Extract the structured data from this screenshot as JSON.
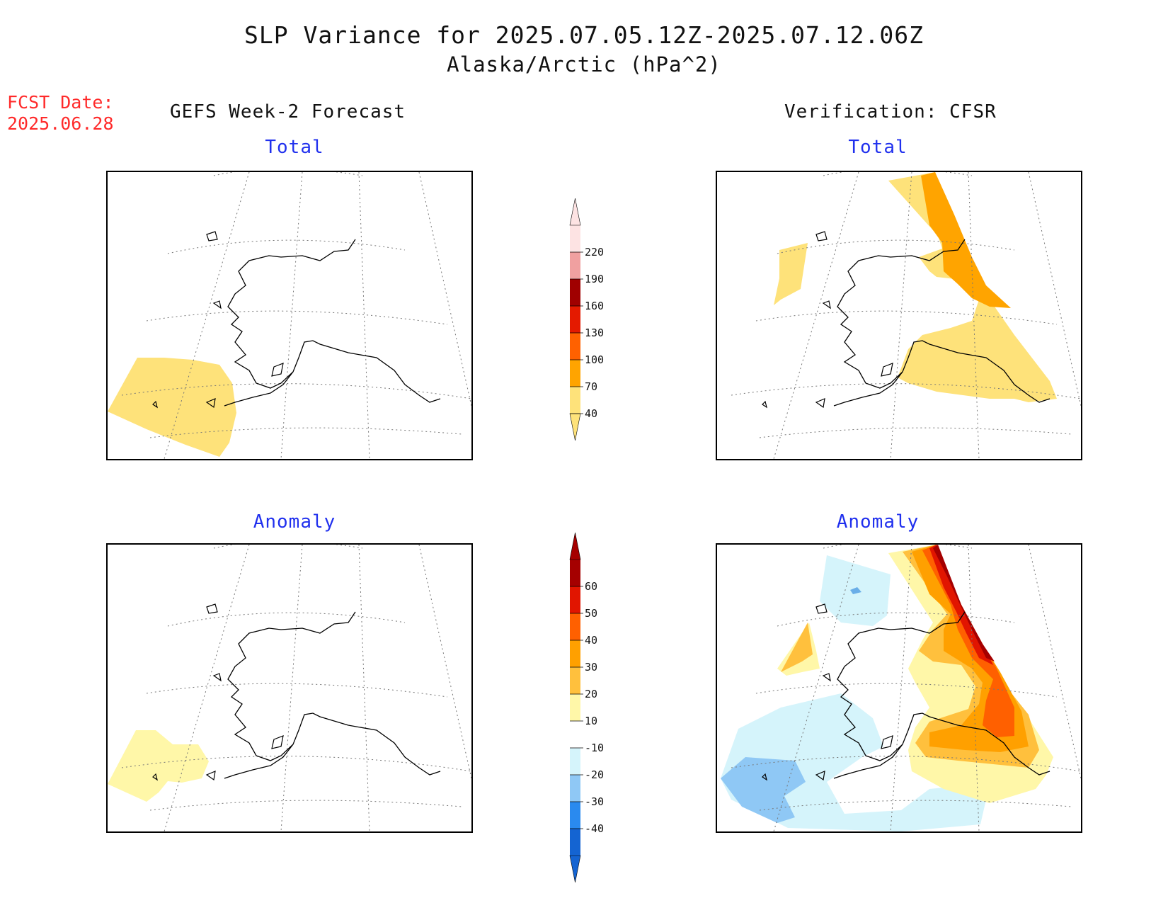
{
  "header": {
    "title": "SLP Variance for 2025.07.05.12Z-2025.07.12.06Z",
    "subtitle": "Alaska/Arctic (hPa^2)"
  },
  "fcst": {
    "label": "FCST Date:",
    "date": "2025.06.28"
  },
  "columns": {
    "left": "GEFS Week-2 Forecast",
    "right": "Verification: CFSR"
  },
  "panels": {
    "forecast_total": {
      "title": "Total"
    },
    "forecast_anomaly": {
      "title": "Anomaly"
    },
    "verification_total": {
      "title": "Total"
    },
    "verification_anomaly": {
      "title": "Anomaly"
    }
  },
  "colorbars": {
    "total": {
      "labels": [
        "40",
        "70",
        "100",
        "130",
        "160",
        "190",
        "220"
      ],
      "colors": [
        "#fee27a",
        "#ffa400",
        "#ff6100",
        "#e41a00",
        "#a00000",
        "#f0a0a0",
        "#fde3e3"
      ]
    },
    "anomaly": {
      "labels": [
        "-40",
        "-30",
        "-20",
        "-10",
        "10",
        "20",
        "30",
        "40",
        "50",
        "60"
      ],
      "colors": [
        "#1464d2",
        "#2a8aef",
        "#8fc8f5",
        "#d5f4fb",
        "#ffffff",
        "#fff7a8",
        "#ffc03d",
        "#ffa000",
        "#ff6000",
        "#e11500",
        "#a50000"
      ]
    }
  }
}
